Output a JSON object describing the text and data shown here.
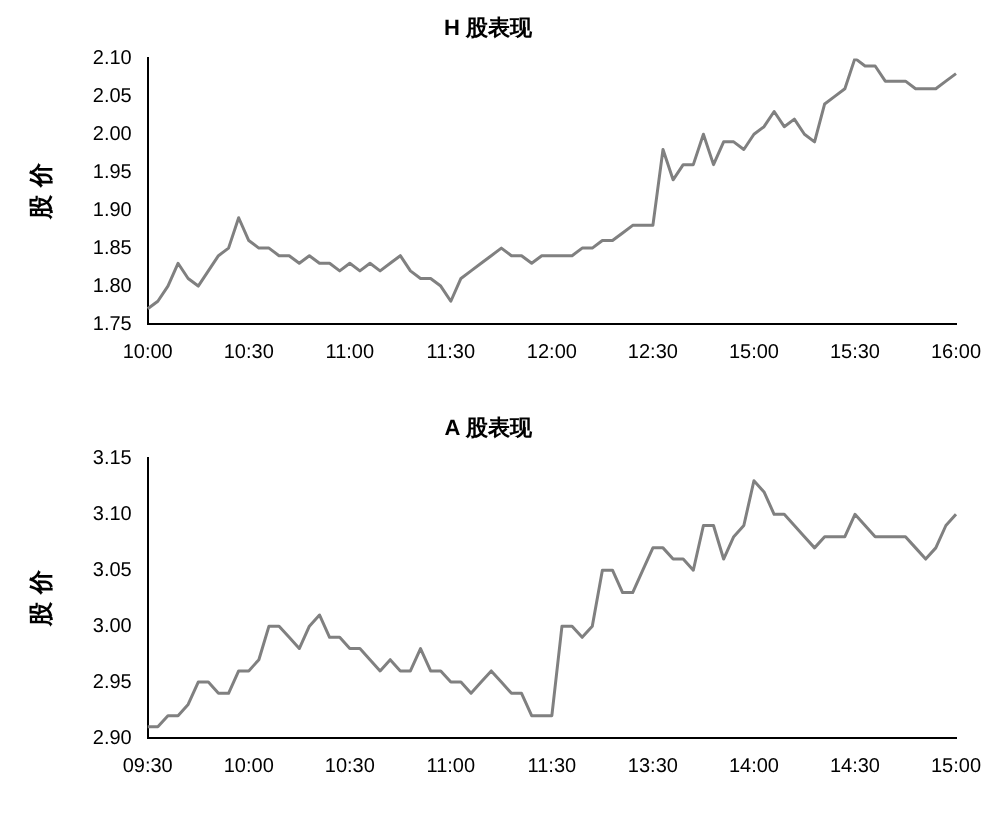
{
  "chart_data": [
    {
      "type": "line",
      "title": "H 股表现",
      "ylabel": "股 价",
      "categories": [
        "10:00",
        null,
        null,
        null,
        null,
        null,
        null,
        null,
        null,
        null,
        "10:30",
        null,
        null,
        null,
        null,
        null,
        null,
        null,
        null,
        null,
        "11:00",
        null,
        null,
        null,
        null,
        null,
        null,
        null,
        null,
        null,
        "11:30",
        null,
        null,
        null,
        null,
        null,
        null,
        null,
        null,
        null,
        "12:00",
        null,
        null,
        null,
        null,
        null,
        null,
        null,
        null,
        null,
        "12:30",
        null,
        null,
        null,
        null,
        null,
        null,
        null,
        null,
        null,
        "15:00",
        null,
        null,
        null,
        null,
        null,
        null,
        null,
        null,
        null,
        "15:30",
        null,
        null,
        null,
        null,
        null,
        null,
        null,
        null,
        null,
        "16:00"
      ],
      "series": [
        {
          "color": "#808080",
          "values": [
            1.77,
            1.78,
            1.8,
            1.83,
            1.81,
            1.8,
            1.82,
            1.84,
            1.85,
            1.89,
            1.86,
            1.85,
            1.85,
            1.84,
            1.84,
            1.83,
            1.84,
            1.83,
            1.83,
            1.82,
            1.83,
            1.82,
            1.83,
            1.82,
            1.83,
            1.84,
            1.82,
            1.81,
            1.81,
            1.8,
            1.78,
            1.81,
            1.82,
            1.83,
            1.84,
            1.85,
            1.84,
            1.84,
            1.83,
            1.84,
            1.84,
            1.84,
            1.84,
            1.85,
            1.85,
            1.86,
            1.86,
            1.87,
            1.88,
            1.88,
            1.88,
            1.98,
            1.94,
            1.96,
            1.96,
            2.0,
            1.96,
            1.99,
            1.99,
            1.98,
            2.0,
            2.01,
            2.03,
            2.01,
            2.02,
            2.0,
            1.99,
            2.04,
            2.05,
            2.06,
            2.1,
            2.09,
            2.09,
            2.07,
            2.07,
            2.07,
            2.06,
            2.06,
            2.06,
            2.07,
            2.08
          ]
        }
      ],
      "ylim": [
        1.75,
        2.1
      ],
      "yticks": [
        {
          "value": 1.75,
          "label": "1.75"
        },
        {
          "value": 1.8,
          "label": "1.80"
        },
        {
          "value": 1.85,
          "label": "1.85"
        },
        {
          "value": 1.9,
          "label": "1.90"
        },
        {
          "value": 1.95,
          "label": "1.95"
        },
        {
          "value": 2.0,
          "label": "2.00"
        },
        {
          "value": 2.05,
          "label": "2.05"
        },
        {
          "value": 2.1,
          "label": "2.10"
        }
      ],
      "grid": false,
      "legend": false,
      "marker": "none",
      "line_style": "solid"
    },
    {
      "type": "line",
      "title": "A 股表现",
      "ylabel": "股 价",
      "categories": [
        "09:30",
        null,
        null,
        null,
        null,
        null,
        null,
        null,
        null,
        null,
        "10:00",
        null,
        null,
        null,
        null,
        null,
        null,
        null,
        null,
        null,
        "10:30",
        null,
        null,
        null,
        null,
        null,
        null,
        null,
        null,
        null,
        "11:00",
        null,
        null,
        null,
        null,
        null,
        null,
        null,
        null,
        null,
        "11:30",
        null,
        null,
        null,
        null,
        null,
        null,
        null,
        null,
        null,
        "13:30",
        null,
        null,
        null,
        null,
        null,
        null,
        null,
        null,
        null,
        "14:00",
        null,
        null,
        null,
        null,
        null,
        null,
        null,
        null,
        null,
        "14:30",
        null,
        null,
        null,
        null,
        null,
        null,
        null,
        null,
        null,
        "15:00"
      ],
      "series": [
        {
          "color": "#808080",
          "values": [
            2.91,
            2.91,
            2.92,
            2.92,
            2.93,
            2.95,
            2.95,
            2.94,
            2.94,
            2.96,
            2.96,
            2.97,
            3.0,
            3.0,
            2.99,
            2.98,
            3.0,
            3.01,
            2.99,
            2.99,
            2.98,
            2.98,
            2.97,
            2.96,
            2.97,
            2.96,
            2.96,
            2.98,
            2.96,
            2.96,
            2.95,
            2.95,
            2.94,
            2.95,
            2.96,
            2.95,
            2.94,
            2.94,
            2.92,
            2.92,
            2.92,
            3.0,
            3.0,
            2.99,
            3.0,
            3.05,
            3.05,
            3.03,
            3.03,
            3.05,
            3.07,
            3.07,
            3.06,
            3.06,
            3.05,
            3.09,
            3.09,
            3.06,
            3.08,
            3.09,
            3.13,
            3.12,
            3.1,
            3.1,
            3.09,
            3.08,
            3.07,
            3.08,
            3.08,
            3.08,
            3.1,
            3.09,
            3.08,
            3.08,
            3.08,
            3.08,
            3.07,
            3.06,
            3.07,
            3.09,
            3.1
          ]
        }
      ],
      "ylim": [
        2.9,
        3.15
      ],
      "yticks": [
        {
          "value": 2.9,
          "label": "2.90"
        },
        {
          "value": 2.95,
          "label": "2.95"
        },
        {
          "value": 3.0,
          "label": "3.00"
        },
        {
          "value": 3.05,
          "label": "3.05"
        },
        {
          "value": 3.1,
          "label": "3.10"
        },
        {
          "value": 3.15,
          "label": "3.15"
        }
      ],
      "grid": false,
      "legend": false,
      "marker": "none",
      "line_style": "solid"
    }
  ]
}
